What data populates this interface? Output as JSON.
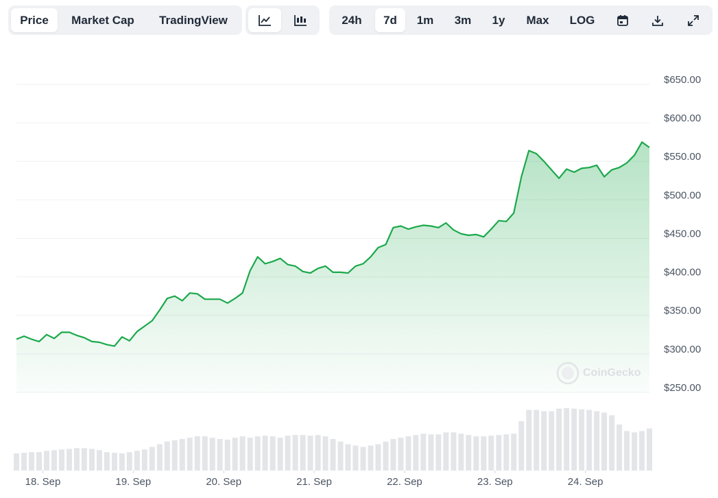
{
  "toolbar": {
    "view_tabs": [
      "Price",
      "Market Cap",
      "TradingView"
    ],
    "active_view": 0,
    "ranges": [
      "24h",
      "7d",
      "1m",
      "3m",
      "1y",
      "Max",
      "LOG"
    ],
    "active_range": 1
  },
  "chart_data": {
    "type": "line",
    "watermark": "CoinGecko",
    "x": [
      17.708,
      17.792,
      17.875,
      17.958,
      18.042,
      18.125,
      18.208,
      18.292,
      18.375,
      18.458,
      18.542,
      18.625,
      18.708,
      18.792,
      18.875,
      18.958,
      19.042,
      19.125,
      19.208,
      19.292,
      19.375,
      19.458,
      19.542,
      19.625,
      19.708,
      19.792,
      19.875,
      19.958,
      20.042,
      20.125,
      20.208,
      20.292,
      20.375,
      20.458,
      20.542,
      20.625,
      20.708,
      20.792,
      20.875,
      20.958,
      21.042,
      21.125,
      21.208,
      21.292,
      21.375,
      21.458,
      21.542,
      21.625,
      21.708,
      21.792,
      21.875,
      21.958,
      22.042,
      22.125,
      22.208,
      22.292,
      22.375,
      22.458,
      22.542,
      22.625,
      22.708,
      22.792,
      22.875,
      22.958,
      23.042,
      23.125,
      23.208,
      23.292,
      23.375,
      23.458,
      23.542,
      23.625,
      23.708,
      23.792,
      23.875,
      23.958,
      24.042,
      24.125,
      24.208,
      24.292,
      24.375,
      24.458,
      24.542,
      24.625,
      24.708
    ],
    "series": [
      {
        "color": "#1aa84a",
        "values": [
          319,
          323,
          319,
          316,
          325,
          320,
          328,
          328,
          324,
          321,
          316,
          315,
          312,
          310,
          322,
          317,
          329,
          336,
          343,
          357,
          372,
          375,
          369,
          379,
          378,
          371,
          371,
          371,
          366,
          372,
          379,
          408,
          426,
          417,
          420,
          424,
          416,
          414,
          407,
          405,
          411,
          414,
          406,
          406,
          405,
          414,
          417,
          426,
          438,
          442,
          464,
          466,
          462,
          465,
          467,
          466,
          464,
          470,
          461,
          456,
          454,
          455,
          452,
          462,
          473,
          472,
          483,
          530,
          564,
          560,
          550,
          539,
          528,
          540,
          536,
          541,
          542,
          545,
          530,
          539,
          542,
          548,
          558,
          575,
          568
        ]
      }
    ],
    "volumes": [
      26,
      27,
      28,
      28,
      30,
      31,
      32,
      33,
      34,
      34,
      33,
      31,
      28,
      27,
      26,
      28,
      30,
      32,
      36,
      40,
      44,
      46,
      48,
      50,
      52,
      52,
      50,
      48,
      47,
      50,
      52,
      50,
      52,
      53,
      52,
      50,
      53,
      54,
      54,
      53,
      54,
      52,
      48,
      44,
      40,
      38,
      36,
      38,
      40,
      44,
      48,
      50,
      52,
      54,
      56,
      55,
      55,
      58,
      58,
      56,
      54,
      52,
      52,
      53,
      54,
      55,
      56,
      75,
      92,
      92,
      90,
      90,
      94,
      95,
      94,
      93,
      92,
      90,
      88,
      84,
      70,
      60,
      58,
      60,
      64
    ],
    "volume_color": "#e3e5e8",
    "xlim": [
      17.708,
      24.708
    ],
    "xticks": [
      {
        "value": 18,
        "label": "18. Sep"
      },
      {
        "value": 19,
        "label": "19. Sep"
      },
      {
        "value": 20,
        "label": "20. Sep"
      },
      {
        "value": 21,
        "label": "21. Sep"
      },
      {
        "value": 22,
        "label": "22. Sep"
      },
      {
        "value": 23,
        "label": "23. Sep"
      },
      {
        "value": 24,
        "label": "24. Sep"
      }
    ],
    "ylim": [
      250,
      650
    ],
    "yticks": [
      {
        "value": 250,
        "label": "$250.00"
      },
      {
        "value": 300,
        "label": "$300.00"
      },
      {
        "value": 350,
        "label": "$350.00"
      },
      {
        "value": 400,
        "label": "$400.00"
      },
      {
        "value": 450,
        "label": "$450.00"
      },
      {
        "value": 500,
        "label": "$500.00"
      },
      {
        "value": 550,
        "label": "$550.00"
      },
      {
        "value": 600,
        "label": "$600.00"
      },
      {
        "value": 650,
        "label": "$650.00"
      }
    ],
    "y2lim": [
      0,
      100
    ],
    "grid": true
  }
}
